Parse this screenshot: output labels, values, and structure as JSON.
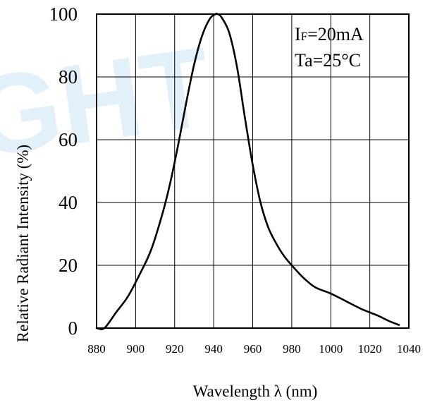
{
  "watermark": {
    "text": "GHT",
    "color": "#2b8fd6"
  },
  "chart_data": {
    "type": "line",
    "xlabel": "Wavelength  λ  (nm)",
    "ylabel": "Relative Radiant Intensity (%)",
    "xlim": [
      880,
      1040
    ],
    "ylim": [
      0,
      100
    ],
    "xticks": [
      "880",
      "900",
      "920",
      "940",
      "960",
      "980",
      "1000",
      "1020",
      "1040"
    ],
    "yticks": [
      "0",
      "20",
      "40",
      "60",
      "80",
      "100"
    ],
    "grid": true,
    "annotations": {
      "line1_main": "I",
      "line1_sub": "F",
      "line1_rest": "=20mA",
      "line2": "Ta=25°C"
    },
    "series": [
      {
        "x": [
          880,
          884,
          890,
          896,
          902,
          908,
          914,
          918,
          922,
          926,
          930,
          934,
          938,
          941,
          942,
          944,
          948,
          952,
          956,
          960,
          964,
          968,
          972,
          976,
          980,
          986,
          992,
          1000,
          1008,
          1016,
          1024,
          1030,
          1035
        ],
        "y": [
          0,
          0,
          5,
          10,
          17,
          25,
          37,
          47,
          59,
          72,
          84,
          93,
          98.5,
          100,
          100,
          99,
          94,
          83,
          67,
          52,
          40,
          32,
          27,
          23,
          20,
          16,
          13,
          11,
          8.5,
          6,
          4,
          2.2,
          1
        ],
        "color": "#000000"
      }
    ]
  }
}
